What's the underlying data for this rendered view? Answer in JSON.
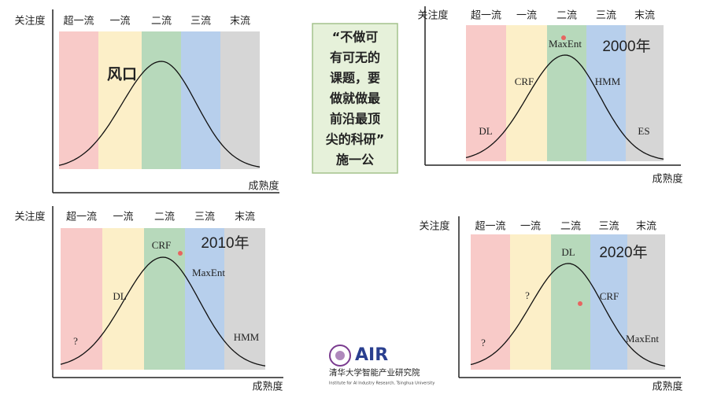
{
  "panels": [
    {
      "y_label": "关注度",
      "x_label": "成熟度",
      "bands": [
        "超一流",
        "一流",
        "二流",
        "三流",
        "末流"
      ],
      "labels": [
        "风口"
      ]
    },
    {
      "y_label": "关注度",
      "x_label": "成熟度",
      "bands": [
        "超一流",
        "一流",
        "二流",
        "三流",
        "末流"
      ],
      "year": "2000年",
      "labels": [
        "DL",
        "CRF",
        "MaxEnt",
        "HMM",
        "ES"
      ]
    },
    {
      "y_label": "关注度",
      "x_label": "成熟度",
      "bands": [
        "超一流",
        "一流",
        "二流",
        "三流",
        "末流"
      ],
      "year": "2010年",
      "labels": [
        "?",
        "DL",
        "CRF",
        "MaxEnt",
        "HMM"
      ]
    },
    {
      "y_label": "关注度",
      "x_label": "成熟度",
      "bands": [
        "超一流",
        "一流",
        "二流",
        "三流",
        "末流"
      ],
      "year": "2020年",
      "labels": [
        "?",
        "?",
        "DL",
        "CRF",
        "MaxEnt"
      ]
    }
  ],
  "quote": {
    "lines": [
      "“不做可",
      "有可无的",
      "课题，要",
      "做就做最",
      "前沿最顶",
      "尖的科研”"
    ],
    "author": "施一公"
  },
  "logo": {
    "name": "AIR",
    "chinese": "清华大学智能产业研究院",
    "english": "Institute for AI Industry Research, Tsinghua University"
  }
}
